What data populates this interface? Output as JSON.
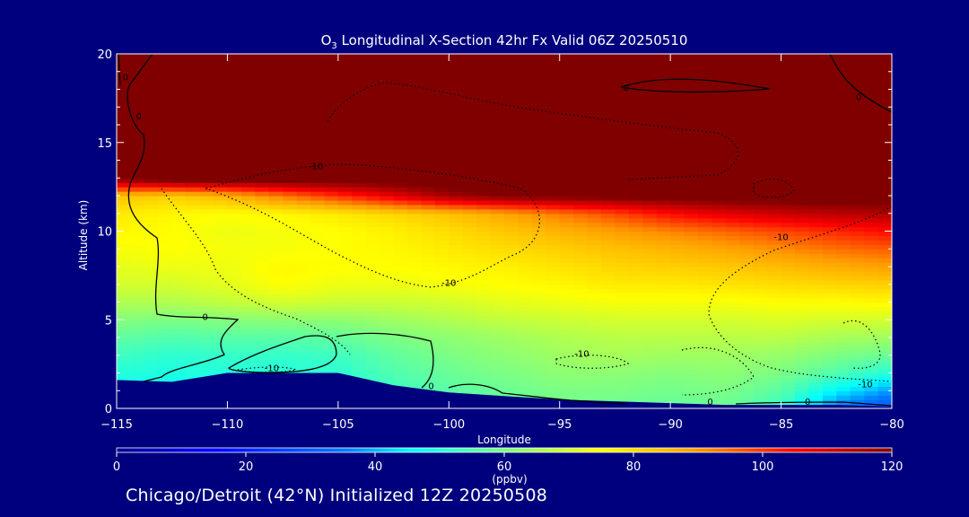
{
  "chart_data": {
    "type": "heatmap",
    "title": {
      "main": "O",
      "sub": "3",
      "rest": " Longitudinal X-Section 42hr  Fx Valid 06Z 20250510"
    },
    "xlabel": "Longitude",
    "ylabel": "Altitude (km)",
    "xlim": [
      -115,
      -80
    ],
    "ylim": [
      0,
      20
    ],
    "x_ticks": [
      -115,
      -110,
      -105,
      -100,
      -95,
      -90,
      -85,
      -80
    ],
    "x_tick_labels": [
      "−115",
      "−110",
      "−105",
      "−100",
      "−95",
      "−90",
      "−85",
      "−80"
    ],
    "y_ticks": [
      0,
      5,
      10,
      15,
      20
    ],
    "y_tick_labels": [
      "0",
      "5",
      "10",
      "15",
      "20"
    ],
    "colorbar": {
      "min": 0,
      "max": 120,
      "ticks": [
        0,
        20,
        40,
        60,
        80,
        100,
        120
      ],
      "tick_labels": [
        "0",
        "20",
        "40",
        "60",
        "80",
        "100",
        "120"
      ],
      "units": "(ppbv)"
    },
    "contour_labels": [
      {
        "text": "0",
        "lon": -114.6,
        "alt": 18.5
      },
      {
        "text": "0",
        "lon": -114.0,
        "alt": 16.3
      },
      {
        "text": "0",
        "lon": -111.0,
        "alt": 5.0
      },
      {
        "text": "0",
        "lon": -100.8,
        "alt": 1.1
      },
      {
        "text": "0",
        "lon": -92.0,
        "alt": 17.9
      },
      {
        "text": "0",
        "lon": -81.5,
        "alt": 17.4
      },
      {
        "text": "0",
        "lon": -88.2,
        "alt": 0.2
      },
      {
        "text": "0",
        "lon": -83.8,
        "alt": 0.2
      },
      {
        "text": "-10",
        "lon": -106.0,
        "alt": 13.5
      },
      {
        "text": "-10",
        "lon": -100.0,
        "alt": 6.9
      },
      {
        "text": "-10",
        "lon": -108.0,
        "alt": 2.1
      },
      {
        "text": "-10",
        "lon": -94.0,
        "alt": 2.9
      },
      {
        "text": "-10",
        "lon": -85.0,
        "alt": 9.5
      },
      {
        "text": "-10",
        "lon": -81.2,
        "alt": 1.2
      }
    ],
    "field": {
      "lons": [
        -115,
        -112.5,
        -110,
        -107.5,
        -105,
        -102.5,
        -100,
        -97.5,
        -95,
        -92.5,
        -90,
        -87.5,
        -85,
        -82.5,
        -80
      ],
      "alts": [
        0,
        1,
        2,
        3,
        4,
        5,
        6,
        7,
        8,
        9,
        10,
        11,
        12,
        13,
        14,
        15,
        16,
        17,
        18,
        19,
        20
      ],
      "terrain_alt": [
        1.6,
        1.5,
        2.0,
        2.0,
        2.0,
        1.3,
        0.9,
        0.7,
        0.5,
        0.4,
        0.3,
        0.2,
        0.2,
        0.2,
        0.1
      ],
      "values": [
        [
          45,
          44,
          45,
          46,
          46,
          52,
          55,
          57,
          59,
          58,
          57,
          58,
          52,
          34,
          27
        ],
        [
          48,
          47,
          48,
          48,
          49,
          53,
          56,
          58,
          60,
          60,
          59,
          60,
          56,
          45,
          38
        ],
        [
          50,
          49,
          50,
          50,
          51,
          55,
          58,
          60,
          62,
          62,
          61,
          62,
          60,
          55,
          50
        ],
        [
          53,
          51,
          52,
          52,
          53,
          57,
          60,
          62,
          64,
          65,
          64,
          64,
          63,
          60,
          58
        ],
        [
          57,
          55,
          56,
          56,
          57,
          60,
          62,
          64,
          66,
          67,
          67,
          67,
          67,
          65,
          64
        ],
        [
          61,
          60,
          61,
          62,
          62,
          64,
          66,
          68,
          69,
          70,
          70,
          70,
          71,
          70,
          70
        ],
        [
          66,
          66,
          68,
          70,
          69,
          69,
          70,
          72,
          73,
          74,
          74,
          74,
          75,
          75,
          76
        ],
        [
          70,
          70,
          72,
          75,
          73,
          73,
          74,
          75,
          76,
          78,
          78,
          79,
          80,
          81,
          82
        ],
        [
          72,
          73,
          73,
          76,
          75,
          75,
          76,
          77,
          79,
          81,
          82,
          83,
          85,
          87,
          89
        ],
        [
          74,
          75,
          74,
          74,
          75,
          76,
          78,
          80,
          82,
          84,
          86,
          88,
          91,
          94,
          96
        ],
        [
          76,
          75,
          73,
          74,
          75,
          77,
          80,
          83,
          86,
          89,
          92,
          95,
          98,
          101,
          104
        ],
        [
          78,
          76,
          75,
          76,
          78,
          81,
          84,
          88,
          93,
          98,
          104,
          108,
          111,
          113,
          114
        ],
        [
          84,
          82,
          86,
          93,
          100,
          108,
          116,
          120,
          121,
          122,
          123,
          124,
          124,
          124,
          124
        ],
        [
          120,
          125,
          125,
          125,
          125,
          125,
          125,
          125,
          125,
          125,
          125,
          125,
          125,
          125,
          125
        ],
        [
          130,
          130,
          130,
          130,
          130,
          130,
          130,
          130,
          130,
          130,
          130,
          130,
          130,
          130,
          130
        ],
        [
          130,
          130,
          130,
          130,
          130,
          130,
          130,
          130,
          130,
          130,
          130,
          130,
          130,
          130,
          130
        ],
        [
          130,
          130,
          130,
          130,
          130,
          130,
          130,
          130,
          130,
          130,
          130,
          130,
          130,
          130,
          130
        ],
        [
          130,
          130,
          130,
          130,
          130,
          130,
          130,
          130,
          130,
          130,
          130,
          130,
          130,
          130,
          130
        ],
        [
          130,
          130,
          130,
          130,
          130,
          130,
          130,
          130,
          130,
          130,
          130,
          130,
          130,
          130,
          130
        ],
        [
          130,
          130,
          130,
          130,
          130,
          130,
          130,
          130,
          130,
          130,
          130,
          130,
          130,
          130,
          130
        ],
        [
          130,
          130,
          130,
          130,
          130,
          130,
          130,
          130,
          130,
          130,
          130,
          130,
          130,
          130,
          130
        ]
      ]
    }
  },
  "footer_text": "Chicago/Detroit (42°N) Initialized 12Z 20250508",
  "colors": {
    "background": "#00007e",
    "frame": "#ffffff",
    "contour": "#000000"
  }
}
